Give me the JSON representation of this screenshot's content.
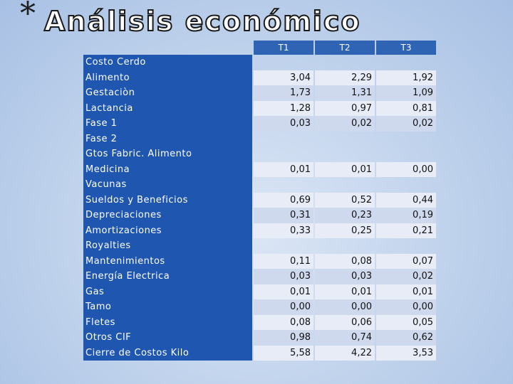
{
  "slide": {
    "bullet": "*",
    "title": "Análisis económico"
  },
  "table": {
    "headers": [
      "T1",
      "T2",
      "T3"
    ],
    "rows": [
      {
        "label": "Costo Cerdo",
        "values": [
          "",
          "",
          ""
        ]
      },
      {
        "label": "Alimento",
        "values": [
          "3,04",
          "2,29",
          "1,92"
        ]
      },
      {
        "label": "Gestaciòn",
        "values": [
          "1,73",
          "1,31",
          "1,09"
        ]
      },
      {
        "label": "Lactancia",
        "values": [
          "1,28",
          "0,97",
          "0,81"
        ]
      },
      {
        "label": "Fase 1",
        "values": [
          "0,03",
          "0,02",
          "0,02"
        ]
      },
      {
        "label": "Fase 2",
        "values": [
          "",
          "",
          ""
        ]
      },
      {
        "label": "Gtos Fabric. Alimento",
        "values": [
          "",
          "",
          ""
        ]
      },
      {
        "label": "Medicina",
        "values": [
          "0,01",
          "0,01",
          "0,00"
        ]
      },
      {
        "label": "Vacunas",
        "values": [
          "",
          "",
          ""
        ]
      },
      {
        "label": "Sueldos y Beneficios",
        "values": [
          "0,69",
          "0,52",
          "0,44"
        ]
      },
      {
        "label": "Depreciaciones",
        "values": [
          "0,31",
          "0,23",
          "0,19"
        ]
      },
      {
        "label": "Amortizaciones",
        "values": [
          "0,33",
          "0,25",
          "0,21"
        ]
      },
      {
        "label": "Royalties",
        "values": [
          "",
          "",
          ""
        ]
      },
      {
        "label": "Mantenimientos",
        "values": [
          "0,11",
          "0,08",
          "0,07"
        ]
      },
      {
        "label": "Energía Electrica",
        "values": [
          "0,03",
          "0,03",
          "0,02"
        ]
      },
      {
        "label": "Gas",
        "values": [
          "0,01",
          "0,01",
          "0,01"
        ]
      },
      {
        "label": "Tamo",
        "values": [
          "0,00",
          "0,00",
          "0,00"
        ]
      },
      {
        "label": "Fletes",
        "values": [
          "0,08",
          "0,06",
          "0,05"
        ]
      },
      {
        "label": "Otros CIF",
        "values": [
          "0,98",
          "0,74",
          "0,62"
        ]
      },
      {
        "label": "Cierre de Costos Kilo",
        "values": [
          "5,58",
          "4,22",
          "3,53"
        ]
      }
    ]
  }
}
